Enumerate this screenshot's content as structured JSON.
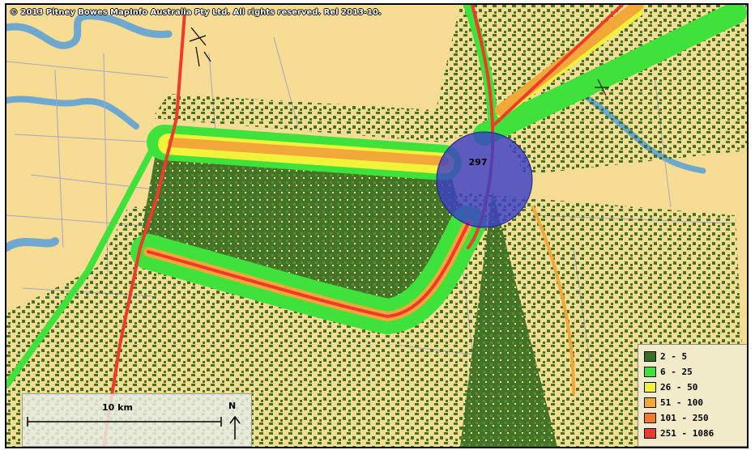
{
  "map": {
    "copyright": "© 2013 Pitney Bowes MapInfo Australia Pty Ltd. All rights reserved. Rel 2013-10.",
    "site_label": "297",
    "site_color": "#3a40c8",
    "land_color": "#f7dc93",
    "water_color": "#6fa8cf",
    "icons": [
      "north-arrow-icon",
      "site-circle-marker-icon",
      "star-marker-icon"
    ]
  },
  "legend": {
    "items": [
      {
        "label": "2 - 5",
        "color": "#3a6e22"
      },
      {
        "label": "6 - 25",
        "color": "#3fe23a"
      },
      {
        "label": "26 - 50",
        "color": "#f2f23a"
      },
      {
        "label": "51 - 100",
        "color": "#f2a838"
      },
      {
        "label": "101 - 250",
        "color": "#f07a2a"
      },
      {
        "label": "251 - 1086",
        "color": "#f03a2a"
      }
    ]
  },
  "scale": {
    "label": "10 km",
    "north": "N"
  }
}
